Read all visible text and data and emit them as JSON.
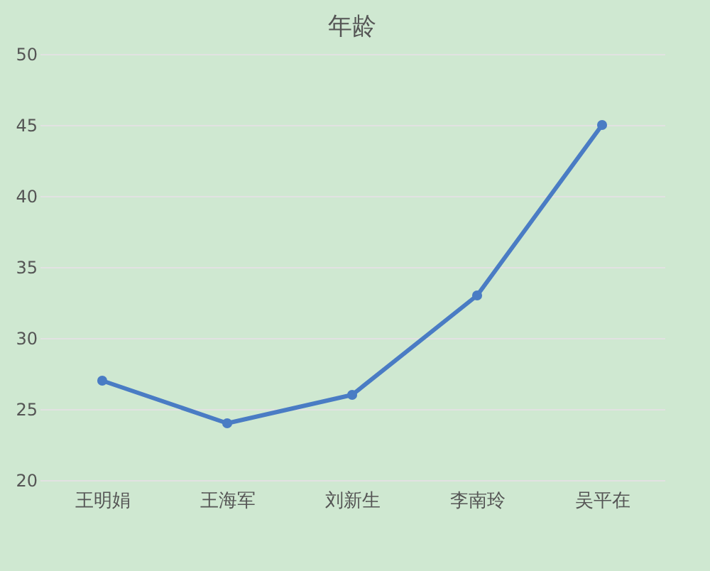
{
  "chart_data": {
    "type": "line",
    "title": "年龄",
    "categories": [
      "王明娟",
      "王海军",
      "刘新生",
      "李南玲",
      "吴平在"
    ],
    "series": [
      {
        "color": "#4a7cc4",
        "values": [
          27,
          24,
          26,
          33,
          45
        ]
      }
    ],
    "ylim": [
      20,
      50
    ],
    "yticks": [
      20,
      25,
      30,
      35,
      40,
      45,
      50
    ],
    "grid": "y",
    "marker": "circle"
  }
}
